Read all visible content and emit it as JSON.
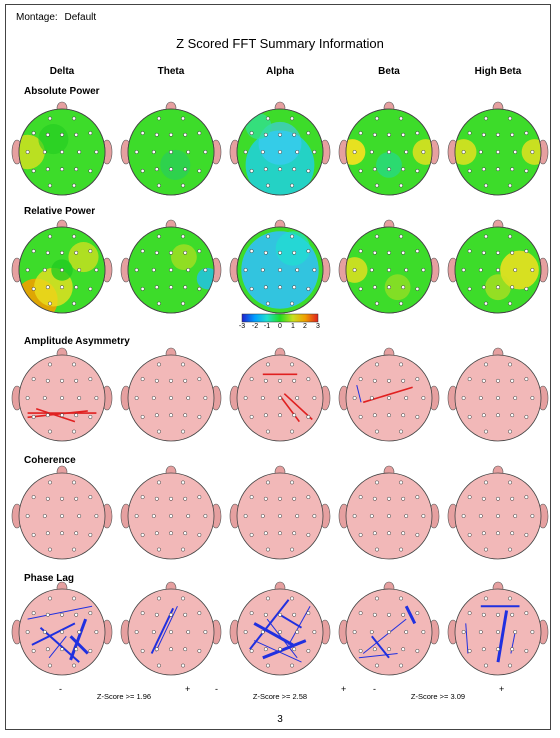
{
  "header": {
    "montage_label": "Montage:",
    "montage_value": "Default",
    "title": "Z Scored FFT Summary Information"
  },
  "bands": [
    "Delta",
    "Theta",
    "Alpha",
    "Beta",
    "High Beta"
  ],
  "rows": [
    {
      "title": "Absolute Power",
      "kind": "heatmap"
    },
    {
      "title": "Relative Power",
      "kind": "heatmap"
    },
    {
      "title": "Amplitude Asymmetry",
      "kind": "lines"
    },
    {
      "title": "Coherence",
      "kind": "lines"
    },
    {
      "title": "Phase Lag",
      "kind": "lines"
    }
  ],
  "colorbar": {
    "ticks": [
      "-3",
      "-2",
      "-1",
      "0",
      "1",
      "2",
      "3"
    ],
    "colors": [
      "#2020d0",
      "#00a0ff",
      "#20e0d0",
      "#22dd22",
      "#c8e020",
      "#f0a000",
      "#e02020"
    ]
  },
  "legend": [
    {
      "label": "Z-Score >= 1.96",
      "minus": "-",
      "plus": "+",
      "thickness": 1
    },
    {
      "label": "Z-Score >= 2.58",
      "minus": "-",
      "plus": "+",
      "thickness": 2
    },
    {
      "label": "Z-Score >= 3.09",
      "minus": "-",
      "plus": "+",
      "thickness": 3
    }
  ],
  "colors": {
    "head_pink": "#f2b8b8",
    "nose_ear": "#e6a0a0",
    "heat_green": "#3ddc2a",
    "pos_line": "#e02020",
    "neg_line": "#2030e0"
  },
  "page_number": "3"
}
